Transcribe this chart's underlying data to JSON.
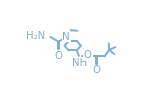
{
  "bg": "#ffffff",
  "lc": "#7bafd4",
  "tc": "#7bafd4",
  "lw": 1.4,
  "fs": 6.8,
  "xlim": [
    0,
    16
  ],
  "ylim": [
    0,
    9
  ]
}
